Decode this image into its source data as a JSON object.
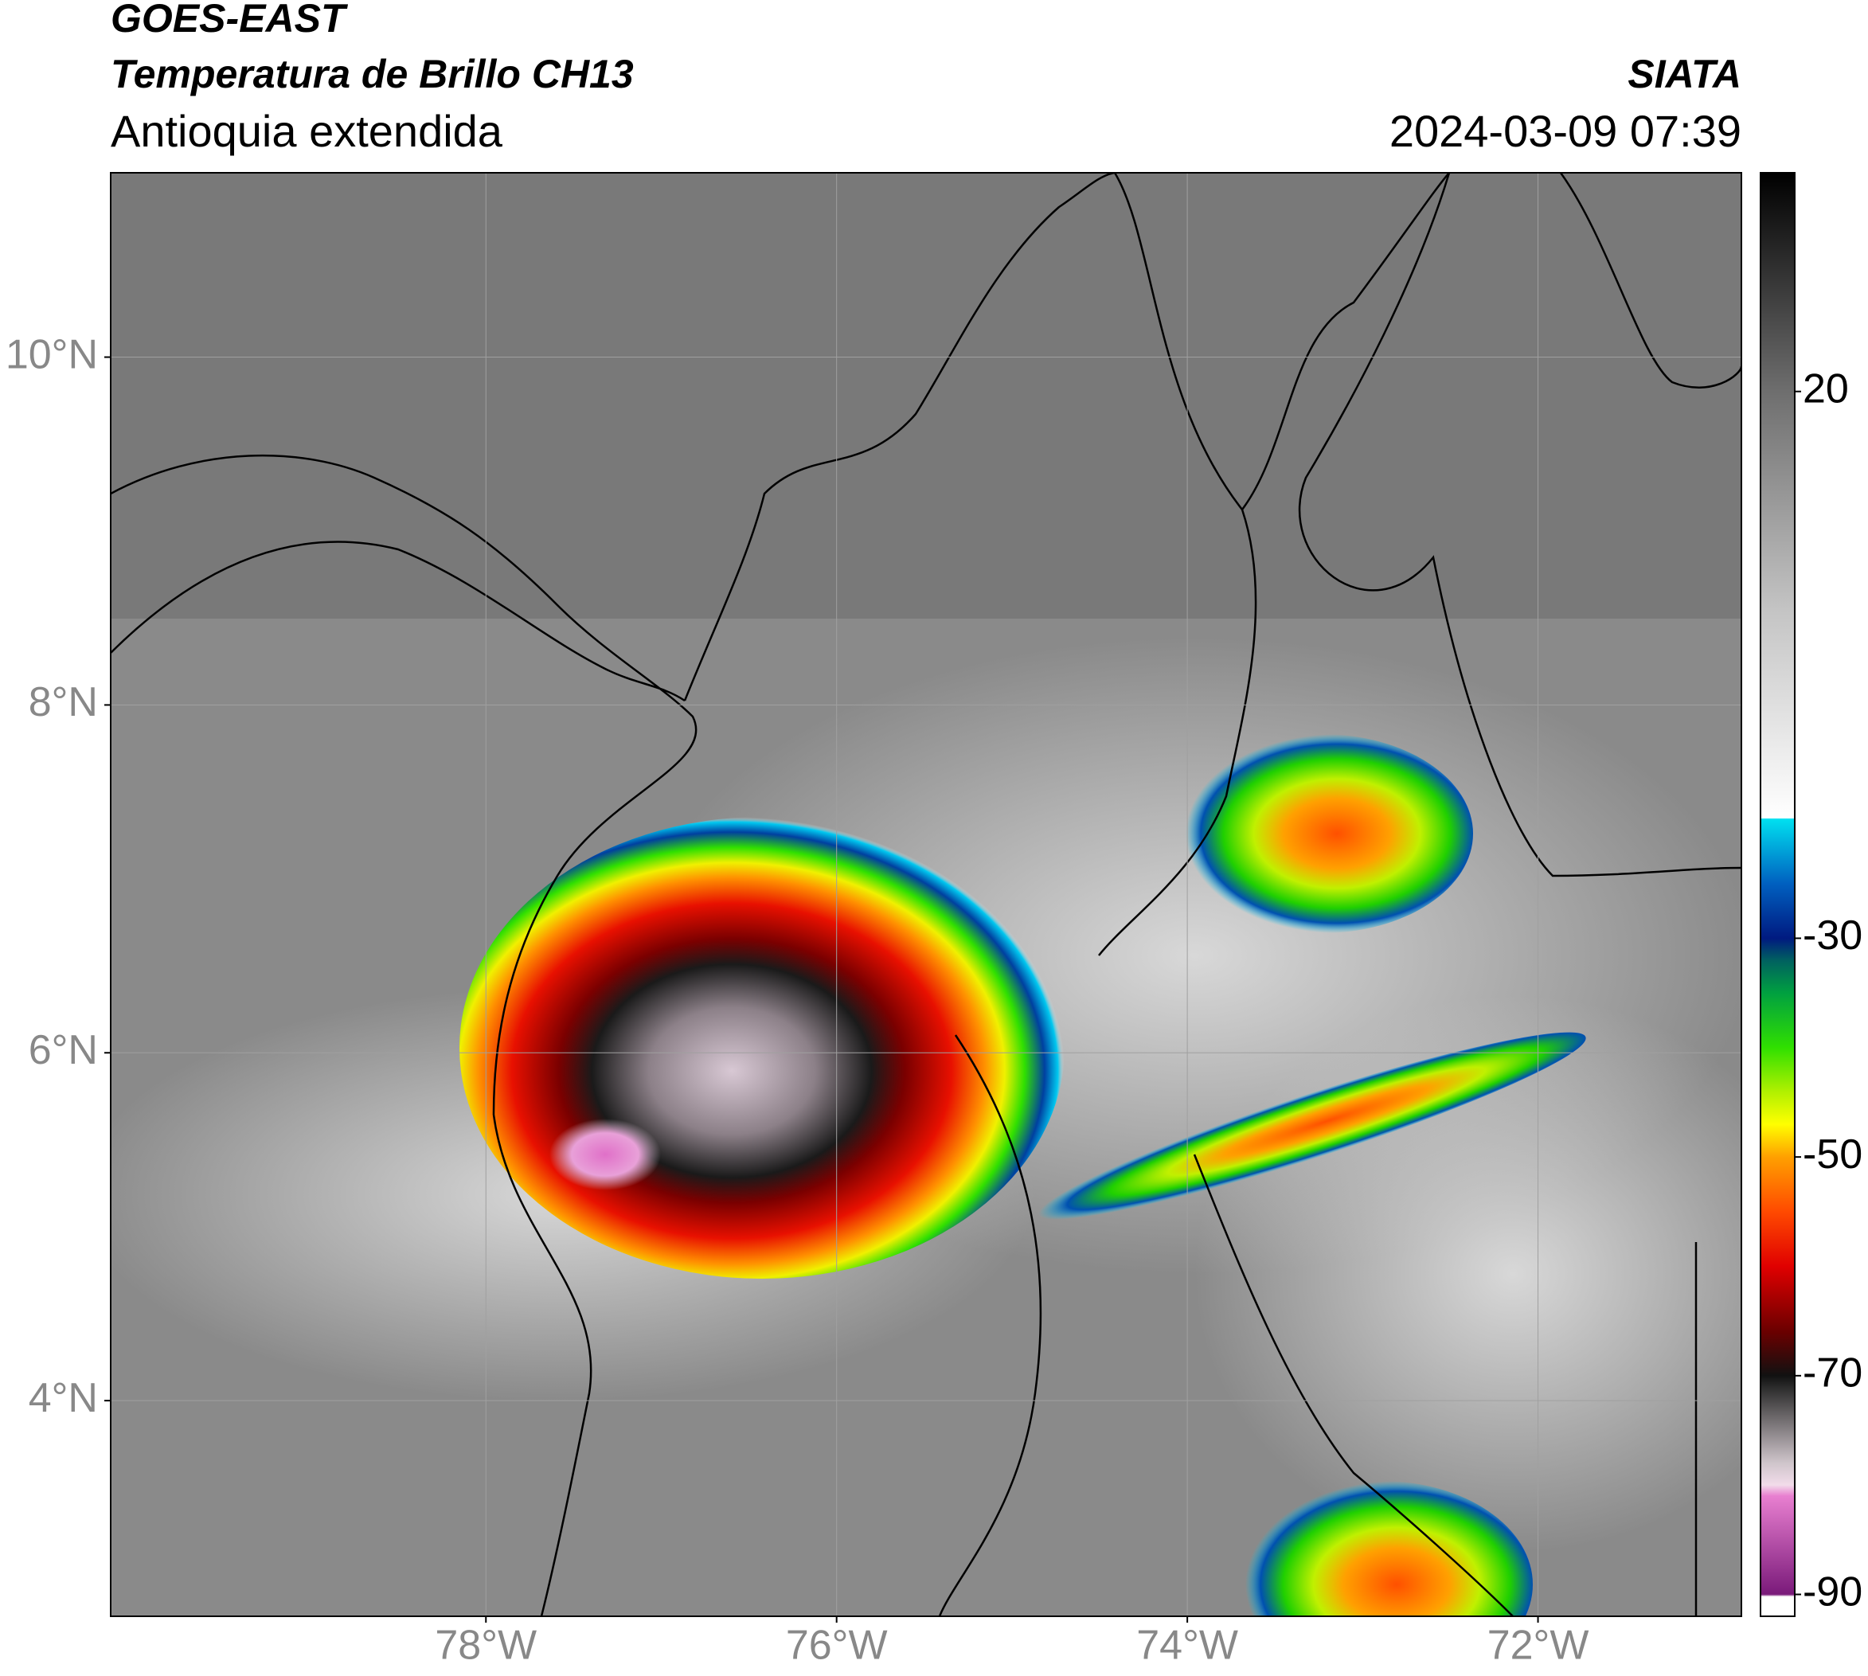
{
  "header": {
    "title": "GOES-EAST",
    "subtitle": "Temperatura de Brillo CH13",
    "region": "Antioquia extendida",
    "source": "SIATA",
    "datetime": "2024-03-09 07:39"
  },
  "map": {
    "lon_lim": [
      -80.14,
      -70.84
    ],
    "lat_lim": [
      2.76,
      11.06
    ],
    "lon_ticks": [
      {
        "value": -78,
        "label": "78°W"
      },
      {
        "value": -76,
        "label": "76°W"
      },
      {
        "value": -74,
        "label": "74°W"
      },
      {
        "value": -72,
        "label": "72°W"
      }
    ],
    "lat_ticks": [
      {
        "value": 10,
        "label": "10°N"
      },
      {
        "value": 8,
        "label": "8°N"
      },
      {
        "value": 6,
        "label": "6°N"
      },
      {
        "value": 4,
        "label": "4°N"
      }
    ],
    "grid": true
  },
  "colorbar": {
    "lim": [
      -92,
      40
    ],
    "ticks": [
      -90,
      -70,
      -50,
      -30,
      20
    ],
    "stops": [
      {
        "value": -92,
        "color": "#ffffff"
      },
      {
        "value": -90.2,
        "color": "#ffffff"
      },
      {
        "value": -90,
        "color": "#7a1a7a"
      },
      {
        "value": -81,
        "color": "#e87fd0"
      },
      {
        "value": -80,
        "color": "#f2dcea"
      },
      {
        "value": -78,
        "color": "#cfc5cb"
      },
      {
        "value": -71,
        "color": "#2a2a2a"
      },
      {
        "value": -70,
        "color": "#111111"
      },
      {
        "value": -66,
        "color": "#6a0000"
      },
      {
        "value": -60,
        "color": "#e00000"
      },
      {
        "value": -55,
        "color": "#ff4a00"
      },
      {
        "value": -50,
        "color": "#ffa000"
      },
      {
        "value": -47,
        "color": "#ffff00"
      },
      {
        "value": -44,
        "color": "#b0f000"
      },
      {
        "value": -40,
        "color": "#30e000"
      },
      {
        "value": -35,
        "color": "#00a040"
      },
      {
        "value": -32,
        "color": "#006060"
      },
      {
        "value": -30,
        "color": "#001a80"
      },
      {
        "value": -25,
        "color": "#0060c0"
      },
      {
        "value": -19.1,
        "color": "#00e0f0"
      },
      {
        "value": -19,
        "color": "#ffffff"
      },
      {
        "value": 0,
        "color": "#c4c4c4"
      },
      {
        "value": 20,
        "color": "#6e6e6e"
      },
      {
        "value": 40,
        "color": "#000000"
      }
    ]
  }
}
